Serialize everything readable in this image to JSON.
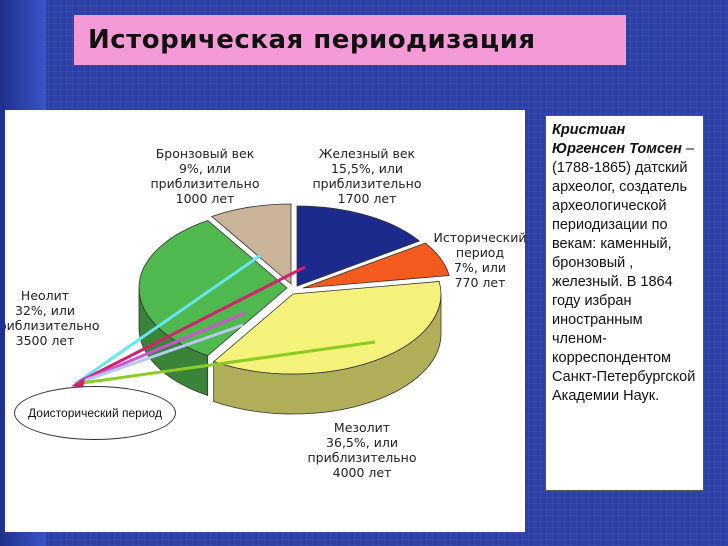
{
  "title": "Историческая периодизация",
  "bio": {
    "name": "Кристиан Юргенсен Томсен",
    "text": " – (1788-1865) датский археолог, создатель археологической периодизации по векам: каменный, бронзовый , железный. В 1864 году избран иностранным членом-корреспондентом Санкт-Петербургской Академии Наук."
  },
  "prehistoric_label": "Доисторический период",
  "chart_data": {
    "type": "pie",
    "title": "",
    "unit": "%",
    "slices": [
      {
        "name": "Железный век",
        "value": 15.5,
        "label_lines": [
          "Железный век",
          "15,5%, или",
          "приблизительно",
          "1700 лет"
        ],
        "color": "#1c2a8c"
      },
      {
        "name": "Исторический период",
        "value": 7,
        "label_lines": [
          "Исторический",
          "период",
          "7%, или",
          "770 лет"
        ],
        "color": "#f25a1e"
      },
      {
        "name": "Мезолит",
        "value": 36.5,
        "label_lines": [
          "Мезолит",
          "36,5%, или",
          "приблизительно",
          "4000 лет"
        ],
        "color": "#f4f27a"
      },
      {
        "name": "Неолит",
        "value": 32,
        "label_lines": [
          "Неолит",
          "32%, или",
          "приблизительно",
          "3500 лет"
        ],
        "color": "#4fb84f"
      },
      {
        "name": "Бронзовый век",
        "value": 9,
        "label_lines": [
          "Бронзовый век",
          "9%, или",
          "приблизительно",
          "1000 лет"
        ],
        "color": "#c9b49a"
      }
    ]
  }
}
